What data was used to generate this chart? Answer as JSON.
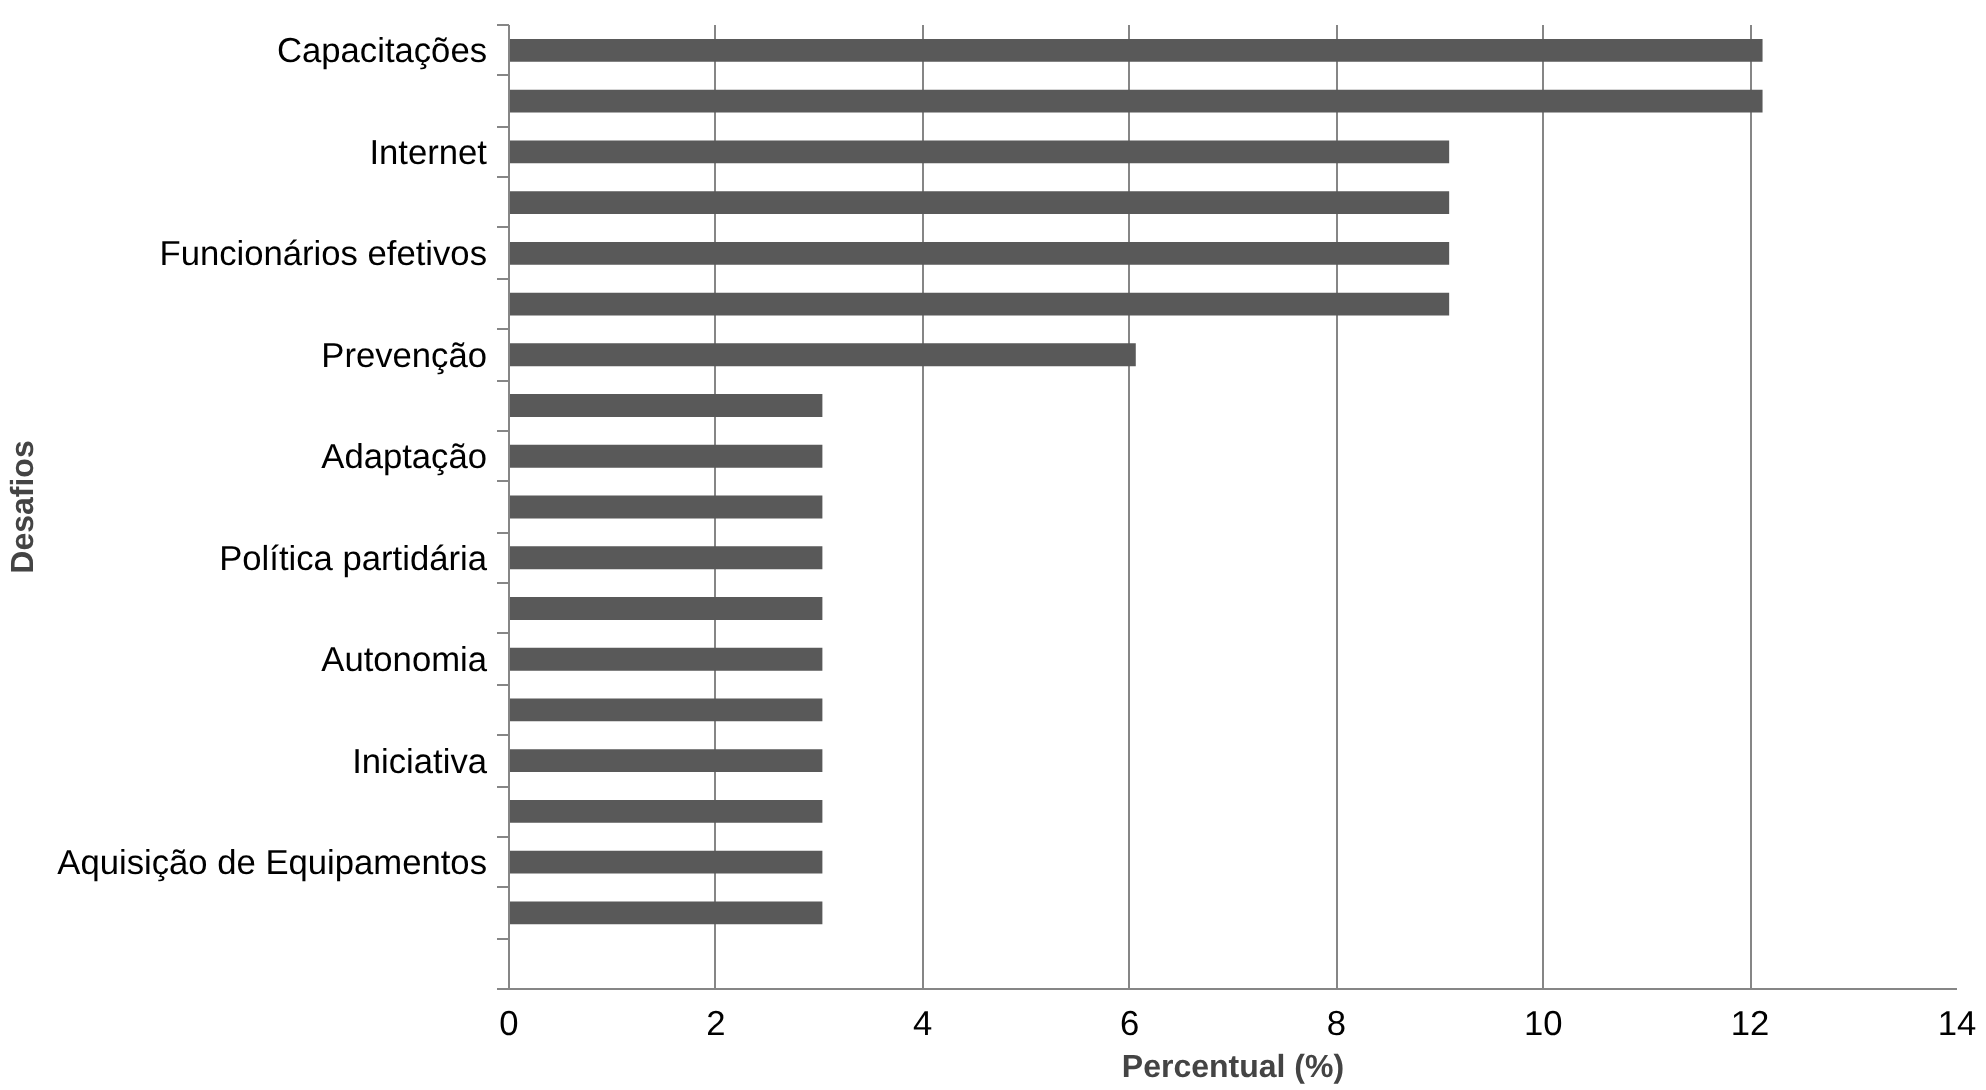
{
  "chart_data": {
    "type": "bar",
    "orientation": "horizontal",
    "xlabel": "Percentual (%)",
    "ylabel": "Desafios",
    "categories": [
      "Capacitações",
      null,
      "Internet",
      null,
      "Funcionários efetivos",
      null,
      "Prevenção",
      null,
      "Adaptação",
      null,
      "Política partidária",
      null,
      "Autonomia",
      null,
      "Iniciativa",
      null,
      "Aquisição de Equipamentos",
      null,
      null
    ],
    "values": [
      12.12,
      12.12,
      9.09,
      9.09,
      9.09,
      9.09,
      6.06,
      3.03,
      3.03,
      3.03,
      3.03,
      3.03,
      3.03,
      3.03,
      3.03,
      3.03,
      3.03,
      3.03,
      null
    ],
    "color": "#595959",
    "xlim": [
      0,
      14
    ],
    "xticks": [
      0,
      2,
      4,
      6,
      8,
      10,
      12,
      14
    ],
    "grid": "x"
  }
}
